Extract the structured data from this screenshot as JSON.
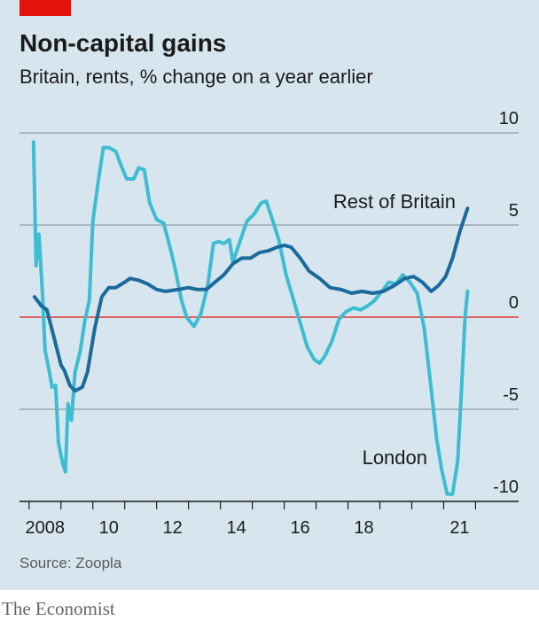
{
  "chart_data": {
    "type": "line",
    "title": "Non-capital gains",
    "subtitle": "Britain, rents, % change on a year earlier",
    "source": "Source: Zoopla",
    "brand": "The Economist",
    "xlim": [
      2007.7,
      2023.35
    ],
    "xticks": [
      {
        "value": 2008,
        "label": "2008"
      },
      2009,
      {
        "value": 2010,
        "label": "10"
      },
      2011,
      {
        "value": 2012,
        "label": "12"
      },
      2013,
      {
        "value": 2014,
        "label": "14"
      },
      2015,
      {
        "value": 2016,
        "label": "16"
      },
      2017,
      {
        "value": 2018,
        "label": "18"
      },
      2019,
      2020,
      {
        "value": 2021,
        "label": "21"
      },
      2022
    ],
    "ylim": [
      -10,
      10
    ],
    "yticks": [
      10,
      5,
      0,
      -5,
      -10
    ],
    "grid": true,
    "zero_line_color": "#e3120b",
    "series": [
      {
        "name": "Rest of Britain",
        "color": "#1b6a9c",
        "x": [
          2008.17,
          2008.39,
          2008.56,
          2008.78,
          2009.0,
          2009.11,
          2009.28,
          2009.44,
          2009.67,
          2009.83,
          2010.06,
          2010.28,
          2010.5,
          2010.72,
          2011.0,
          2011.17,
          2011.44,
          2011.72,
          2012.0,
          2012.28,
          2012.67,
          2013.0,
          2013.28,
          2013.56,
          2013.83,
          2014.11,
          2014.39,
          2014.67,
          2014.94,
          2015.22,
          2015.5,
          2015.78,
          2016.0,
          2016.22,
          2016.5,
          2016.78,
          2017.11,
          2017.44,
          2017.78,
          2018.11,
          2018.44,
          2018.78,
          2019.11,
          2019.44,
          2019.78,
          2020.06,
          2020.33,
          2020.61,
          2020.83,
          2021.06,
          2021.28,
          2021.5,
          2021.75
        ],
        "values": [
          1.1,
          0.6,
          0.4,
          -1.1,
          -2.6,
          -2.9,
          -3.7,
          -4.0,
          -3.8,
          -3.0,
          -0.6,
          1.1,
          1.6,
          1.6,
          1.9,
          2.1,
          2.0,
          1.8,
          1.5,
          1.4,
          1.5,
          1.6,
          1.5,
          1.5,
          1.9,
          2.3,
          2.9,
          3.2,
          3.2,
          3.5,
          3.6,
          3.8,
          3.9,
          3.8,
          3.2,
          2.5,
          2.1,
          1.6,
          1.5,
          1.3,
          1.4,
          1.3,
          1.4,
          1.7,
          2.1,
          2.2,
          1.9,
          1.4,
          1.7,
          2.2,
          3.2,
          4.6,
          5.9
        ]
      },
      {
        "name": "London",
        "color": "#3ebcd2",
        "x": [
          2008.14,
          2008.22,
          2008.31,
          2008.42,
          2008.5,
          2008.64,
          2008.72,
          2008.83,
          2008.92,
          2009.06,
          2009.14,
          2009.22,
          2009.33,
          2009.44,
          2009.61,
          2009.75,
          2009.89,
          2010.0,
          2010.17,
          2010.33,
          2010.5,
          2010.72,
          2010.89,
          2011.06,
          2011.28,
          2011.44,
          2011.61,
          2011.78,
          2012.0,
          2012.22,
          2012.39,
          2012.56,
          2012.78,
          2012.94,
          2013.17,
          2013.39,
          2013.61,
          2013.78,
          2013.94,
          2014.11,
          2014.28,
          2014.39,
          2014.61,
          2014.83,
          2015.06,
          2015.28,
          2015.44,
          2015.61,
          2015.83,
          2016.06,
          2016.28,
          2016.5,
          2016.72,
          2016.94,
          2017.11,
          2017.28,
          2017.5,
          2017.72,
          2017.94,
          2018.17,
          2018.39,
          2018.61,
          2018.83,
          2019.06,
          2019.28,
          2019.5,
          2019.72,
          2019.94,
          2020.17,
          2020.39,
          2020.61,
          2020.78,
          2020.94,
          2021.11,
          2021.28,
          2021.44,
          2021.56,
          2021.67,
          2021.75
        ],
        "values": [
          9.5,
          2.8,
          4.5,
          1.3,
          -1.8,
          -3.0,
          -3.8,
          -3.7,
          -6.8,
          -8.0,
          -8.4,
          -4.7,
          -5.6,
          -3.0,
          -1.8,
          -0.2,
          0.9,
          5.2,
          7.4,
          9.2,
          9.2,
          9.0,
          8.2,
          7.5,
          7.5,
          8.1,
          8.0,
          6.2,
          5.3,
          5.1,
          4.0,
          2.8,
          0.9,
          0,
          -0.5,
          0.2,
          1.8,
          4.0,
          4.1,
          4.0,
          4.2,
          3.0,
          4.1,
          5.2,
          5.6,
          6.2,
          6.3,
          5.4,
          4.2,
          2.3,
          1.0,
          -0.3,
          -1.6,
          -2.3,
          -2.5,
          -2.1,
          -1.3,
          -0.1,
          0.3,
          0.5,
          0.4,
          0.6,
          0.9,
          1.4,
          1.9,
          1.8,
          2.3,
          1.9,
          1.3,
          -0.6,
          -3.9,
          -6.6,
          -8.3,
          -9.6,
          -9.6,
          -7.8,
          -3.9,
          0,
          1.4
        ]
      }
    ]
  }
}
